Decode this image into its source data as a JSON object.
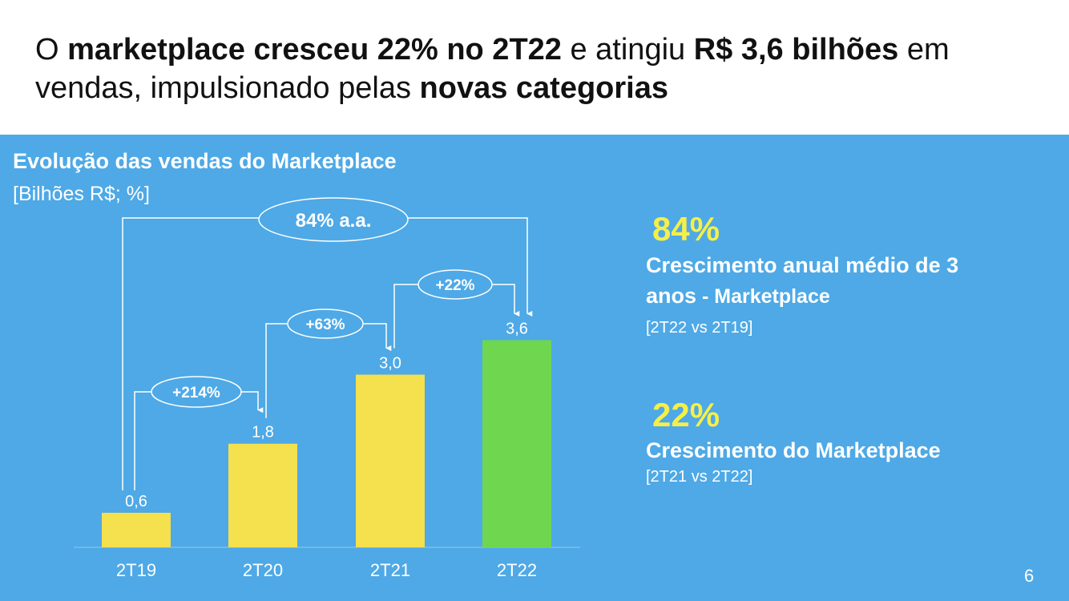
{
  "headline": {
    "p1": "O ",
    "b1": "marketplace cresceu 22% no 2T22",
    "p2": " e atingiu ",
    "b2": "R$ 3,6 bilhões",
    "p3": " em vendas, impulsionado pelas ",
    "b3": "novas categorias"
  },
  "chart_title": "Evolução das vendas do Marketplace",
  "chart_unit": "[Bilhões R$; %]",
  "chart_data": {
    "type": "bar",
    "title": "Evolução das vendas do Marketplace",
    "ylabel": "[Bilhões R$; %]",
    "categories": [
      "2T19",
      "2T20",
      "2T21",
      "2T22"
    ],
    "values": [
      0.6,
      1.8,
      3.0,
      3.6
    ],
    "value_labels": [
      "0,6",
      "1,8",
      "3,0",
      "3,6"
    ],
    "bar_colors": [
      "#f5e04e",
      "#f5e04e",
      "#f5e04e",
      "#6fd64f"
    ],
    "ylim": [
      0,
      4.4
    ],
    "grid": false,
    "annotations": [
      {
        "label": "+214%",
        "from": "2T19",
        "to": "2T20"
      },
      {
        "label": "+63%",
        "from": "2T20",
        "to": "2T21"
      },
      {
        "label": "+22%",
        "from": "2T21",
        "to": "2T22"
      },
      {
        "label": "84% a.a.",
        "from": "2T19",
        "to": "2T22"
      }
    ]
  },
  "kpis": [
    {
      "value": "84%",
      "label_bold": "Crescimento anual médio de 3 anos",
      "label_light": " - Marketplace",
      "note": "[2T22 vs 2T19]"
    },
    {
      "value": "22%",
      "label_bold": "Crescimento do Marketplace",
      "label_light": "",
      "note": "[2T21 vs 2T22]"
    }
  ],
  "page_number": "6",
  "colors": {
    "panel": "#4ea9e6",
    "accent_yellow": "#f5ef4a",
    "bar_yellow": "#f5e04e",
    "bar_green": "#6fd64f"
  }
}
